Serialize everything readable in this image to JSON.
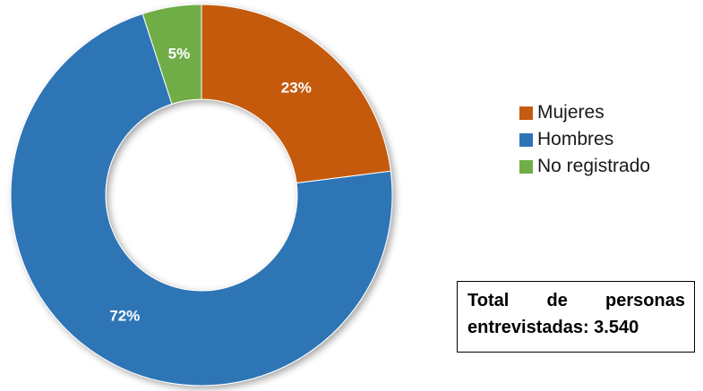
{
  "chart_data": {
    "type": "pie",
    "donut": true,
    "slices": [
      {
        "label": "Mujeres",
        "value": 23,
        "display": "23%",
        "color": "#C55A11"
      },
      {
        "label": "Hombres",
        "value": 72,
        "display": "72%",
        "color": "#2E75B6"
      },
      {
        "label": "No registrado",
        "value": 5,
        "display": "5%",
        "color": "#70AD47"
      }
    ],
    "legend_position": "right",
    "start_angle_deg": 0,
    "direction": "clockwise"
  },
  "legend": {
    "items": [
      {
        "label": "Mujeres",
        "color": "#C55A11"
      },
      {
        "label": "Hombres",
        "color": "#2E75B6"
      },
      {
        "label": "No registrado",
        "color": "#70AD47"
      }
    ]
  },
  "total_box": {
    "word1": "Total",
    "word2": "de",
    "word3": "personas",
    "line2": "entrevistadas: 3.540"
  }
}
